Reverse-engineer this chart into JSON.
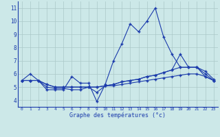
{
  "xlabel": "Graphe des températures (°c)",
  "x_labels": [
    "0",
    "1",
    "2",
    "3",
    "4",
    "5",
    "6",
    "7",
    "8",
    "9",
    "10",
    "11",
    "12",
    "13",
    "14",
    "15",
    "16",
    "17",
    "18",
    "19",
    "20",
    "21",
    "22",
    "23"
  ],
  "hours": [
    0,
    1,
    2,
    3,
    4,
    5,
    6,
    7,
    8,
    9,
    10,
    11,
    12,
    13,
    14,
    15,
    16,
    17,
    18,
    19,
    20,
    21,
    22,
    23
  ],
  "series1": [
    5.5,
    6.0,
    5.5,
    4.8,
    4.8,
    4.8,
    5.8,
    5.3,
    5.3,
    3.9,
    5.2,
    7.0,
    8.3,
    9.8,
    9.2,
    10.0,
    11.0,
    8.8,
    7.5,
    6.5,
    6.5,
    6.5,
    5.8,
    5.5
  ],
  "series2": [
    5.5,
    5.5,
    5.5,
    5.0,
    4.9,
    4.9,
    4.8,
    4.8,
    5.0,
    4.6,
    5.1,
    5.1,
    5.2,
    5.3,
    5.4,
    5.5,
    5.6,
    5.7,
    5.8,
    5.9,
    6.0,
    6.0,
    5.8,
    5.5
  ],
  "series3": [
    5.5,
    5.5,
    5.5,
    5.2,
    5.0,
    5.0,
    5.0,
    5.0,
    5.0,
    5.0,
    5.1,
    5.2,
    5.4,
    5.5,
    5.6,
    5.8,
    5.9,
    6.1,
    6.3,
    6.5,
    6.5,
    6.5,
    6.2,
    5.6
  ],
  "series4": [
    5.5,
    5.5,
    5.5,
    5.2,
    5.0,
    5.0,
    5.0,
    5.0,
    5.0,
    5.0,
    5.1,
    5.2,
    5.4,
    5.5,
    5.6,
    5.8,
    5.9,
    6.1,
    6.3,
    7.5,
    6.5,
    6.5,
    6.0,
    5.5
  ],
  "line_color": "#1a3aab",
  "bg_color": "#cce8e8",
  "grid_color": "#aac8c8",
  "ylim": [
    3.5,
    11.5
  ],
  "yticks": [
    4,
    5,
    6,
    7,
    8,
    9,
    10,
    11
  ]
}
